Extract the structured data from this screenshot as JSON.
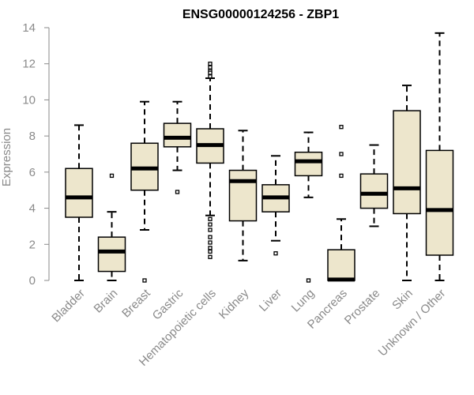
{
  "chart_data": {
    "type": "boxplot",
    "title": "ENSG00000124256 - ZBP1",
    "xlabel": "",
    "ylabel": "Expression",
    "ylim": [
      0,
      14
    ],
    "yticks": [
      0,
      2,
      4,
      6,
      8,
      10,
      12,
      14
    ],
    "grid": false,
    "colors": {
      "box_fill": "#ede6cc",
      "stroke": "#000000",
      "axis_text": "#8a8a8a"
    },
    "categories": [
      "Bladder",
      "Brain",
      "Breast",
      "Gastric",
      "Hematopoietic cells",
      "Kidney",
      "Liver",
      "Lung",
      "Pancreas",
      "Prostate",
      "Skin",
      "Unknown / Other"
    ],
    "boxes": [
      {
        "category": "Bladder",
        "whisker_low": 0,
        "q1": 3.5,
        "median": 4.6,
        "q3": 6.2,
        "whisker_high": 8.6,
        "outliers": []
      },
      {
        "category": "Brain",
        "whisker_low": 0,
        "q1": 0.5,
        "median": 1.6,
        "q3": 2.4,
        "whisker_high": 3.8,
        "outliers": [
          5.8
        ]
      },
      {
        "category": "Breast",
        "whisker_low": 2.8,
        "q1": 5.0,
        "median": 6.2,
        "q3": 7.6,
        "whisker_high": 9.9,
        "outliers": [
          0
        ]
      },
      {
        "category": "Gastric",
        "whisker_low": 6.1,
        "q1": 7.4,
        "median": 7.9,
        "q3": 8.7,
        "whisker_high": 9.9,
        "outliers": [
          4.9
        ]
      },
      {
        "category": "Hematopoietic cells",
        "whisker_low": 3.6,
        "q1": 6.5,
        "median": 7.5,
        "q3": 8.4,
        "whisker_high": 11.2,
        "outliers": [
          12.0,
          11.8,
          11.6,
          11.5,
          11.3,
          3.4,
          3.1,
          2.8,
          2.4,
          2.1,
          1.8,
          1.6,
          1.3
        ]
      },
      {
        "category": "Kidney",
        "whisker_low": 1.1,
        "q1": 3.3,
        "median": 5.5,
        "q3": 6.1,
        "whisker_high": 8.3,
        "outliers": []
      },
      {
        "category": "Liver",
        "whisker_low": 2.2,
        "q1": 3.8,
        "median": 4.6,
        "q3": 5.3,
        "whisker_high": 6.9,
        "outliers": [
          1.5
        ]
      },
      {
        "category": "Lung",
        "whisker_low": 4.6,
        "q1": 5.8,
        "median": 6.6,
        "q3": 7.1,
        "whisker_high": 8.2,
        "outliers": [
          0
        ]
      },
      {
        "category": "Pancreas",
        "whisker_low": 0,
        "q1": 0,
        "median": 0.05,
        "q3": 1.7,
        "whisker_high": 3.4,
        "outliers": [
          8.5,
          7.0,
          5.8
        ]
      },
      {
        "category": "Prostate",
        "whisker_low": 3.0,
        "q1": 4.0,
        "median": 4.8,
        "q3": 5.9,
        "whisker_high": 7.5,
        "outliers": []
      },
      {
        "category": "Skin",
        "whisker_low": 0,
        "q1": 3.7,
        "median": 5.1,
        "q3": 9.4,
        "whisker_high": 10.8,
        "outliers": []
      },
      {
        "category": "Unknown / Other",
        "whisker_low": 0,
        "q1": 1.4,
        "median": 3.9,
        "q3": 7.2,
        "whisker_high": 13.7,
        "outliers": []
      }
    ]
  }
}
